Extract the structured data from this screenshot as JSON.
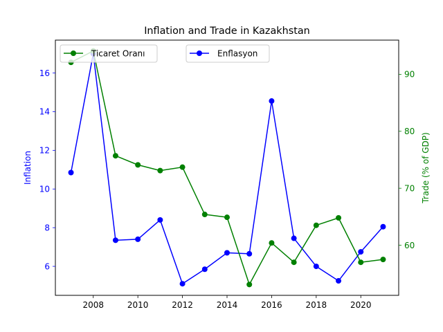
{
  "chart_data": {
    "type": "line",
    "title": "Inflation and Trade in Kazakhstan",
    "xlabel": "",
    "ylabel_left": "Inflation",
    "ylabel_right": "Trade (% of GDP)",
    "x": [
      2007,
      2008,
      2009,
      2010,
      2011,
      2012,
      2013,
      2014,
      2015,
      2016,
      2017,
      2018,
      2019,
      2020,
      2021
    ],
    "xlim": [
      2006.3,
      2021.7
    ],
    "x_ticks": [
      2008,
      2010,
      2012,
      2014,
      2016,
      2018,
      2020
    ],
    "left_axis": {
      "ylim": [
        4.5,
        17.7
      ],
      "ticks": [
        6,
        8,
        10,
        12,
        14,
        16
      ],
      "color": "#0000ff"
    },
    "right_axis": {
      "ylim": [
        51.2,
        96.0
      ],
      "ticks": [
        60,
        70,
        80,
        90
      ],
      "color": "#008000"
    },
    "grid": false,
    "series": [
      {
        "name": "Enflasyon",
        "axis": "left",
        "color": "#0000ff",
        "values": [
          10.85,
          17.0,
          7.35,
          7.4,
          8.4,
          5.1,
          5.85,
          6.7,
          6.65,
          14.55,
          7.45,
          6.0,
          5.25,
          6.75,
          8.05
        ]
      },
      {
        "name": "Ticaret Oranı",
        "axis": "right",
        "color": "#008000",
        "values": [
          92.1,
          94.1,
          75.7,
          74.1,
          73.1,
          73.7,
          65.4,
          64.9,
          53.1,
          60.4,
          57.0,
          63.5,
          64.8,
          57.0,
          57.5
        ]
      }
    ],
    "legends": [
      {
        "series": "Ticaret Oranı",
        "placement": "top-left"
      },
      {
        "series": "Enflasyon",
        "placement": "top-center"
      }
    ]
  }
}
